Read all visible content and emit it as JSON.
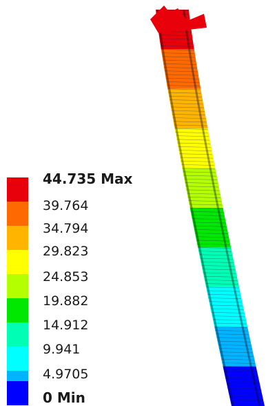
{
  "legend": {
    "max_label": "44.735 Max",
    "min_label": "0 Min",
    "bands": [
      {
        "label": "44.735 Max",
        "color": "#e8000b"
      },
      {
        "label": "39.764",
        "color": "#ff6a00"
      },
      {
        "label": "34.794",
        "color": "#ffb400"
      },
      {
        "label": "29.823",
        "color": "#ffff00"
      },
      {
        "label": "24.853",
        "color": "#b4ff00"
      },
      {
        "label": "19.882",
        "color": "#00e800"
      },
      {
        "label": "14.912",
        "color": "#00ffb4"
      },
      {
        "label": "9.941",
        "color": "#00ffff"
      },
      {
        "label": "4.9705",
        "color": "#00b4ff"
      },
      {
        "label": "0 Min",
        "color": "#0000ff"
      }
    ],
    "tick_labels": [
      "44.735 Max",
      "39.764",
      "34.794",
      "29.823",
      "24.853",
      "19.882",
      "14.912",
      "9.941",
      "4.9705",
      "0 Min"
    ]
  },
  "colors": {
    "max": "#e8000b",
    "min": "#0000ff",
    "mesh_line": "#1c2a4a"
  }
}
